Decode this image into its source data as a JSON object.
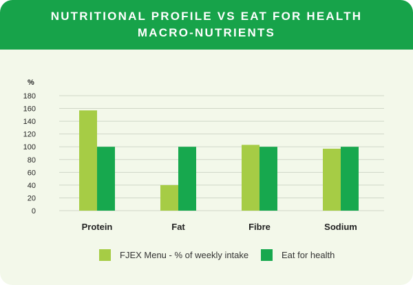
{
  "header": {
    "title_line1": "NUTRITIONAL PROFILE VS EAT FOR HEALTH",
    "title_line2": "MACRO-NUTRIENTS"
  },
  "colors": {
    "header_bg": "#17a34a",
    "card_bg": "#f3f8ea",
    "series_1": "#a6cc45",
    "series_2": "#17a84e",
    "grid": "#cfd6c7"
  },
  "chart_data": {
    "type": "bar",
    "title": "NUTRITIONAL PROFILE VS EAT FOR HEALTH MACRO-NUTRIENTS",
    "ylabel": "%",
    "xlabel": "",
    "ylim": [
      0,
      180
    ],
    "yticks": [
      0,
      20,
      40,
      60,
      80,
      100,
      120,
      140,
      160,
      180
    ],
    "grid": true,
    "legend_position": "bottom",
    "categories": [
      "Protein",
      "Fat",
      "Fibre",
      "Sodium"
    ],
    "series": [
      {
        "name": "FJEX Menu - % of weekly intake",
        "values": [
          157,
          40,
          103,
          97
        ]
      },
      {
        "name": "Eat for health",
        "values": [
          100,
          100,
          100,
          100
        ]
      }
    ]
  }
}
